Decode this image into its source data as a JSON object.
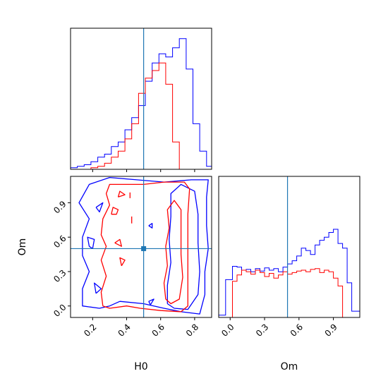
{
  "chart_data": {
    "type": "corner",
    "parameters": [
      "H0",
      "Om"
    ],
    "axis_labels": {
      "x_h0": "H0",
      "x_om": "Om",
      "y_om": "Om"
    },
    "ranges": {
      "H0": [
        0.07,
        0.9
      ],
      "Om": [
        -0.1,
        1.13
      ]
    },
    "truths": {
      "H0": 0.5,
      "Om": 0.5
    },
    "colors": {
      "sample_1": "#0000ff",
      "sample_2": "#ff0000",
      "truth": "#1f77b4"
    },
    "ticks": {
      "H0": {
        "values": [
          0.2,
          0.4,
          0.6,
          0.8
        ],
        "labels": [
          "0.2",
          "0.4",
          "0.6",
          "0.8"
        ]
      },
      "Om": {
        "values": [
          0.0,
          0.3,
          0.6,
          0.9
        ],
        "labels": [
          "0.0",
          "0.3",
          "0.6",
          "0.9"
        ]
      }
    },
    "hist_H0": {
      "x": [
        0.07,
        0.11,
        0.15,
        0.19,
        0.23,
        0.27,
        0.31,
        0.35,
        0.39,
        0.43,
        0.47,
        0.51,
        0.55,
        0.59,
        0.63,
        0.67,
        0.71,
        0.75,
        0.79,
        0.83,
        0.87,
        0.9
      ],
      "blue": [
        1,
        2,
        3,
        5,
        8,
        10,
        15,
        18,
        26,
        34,
        42,
        58,
        70,
        76,
        74,
        80,
        86,
        66,
        30,
        12,
        2
      ],
      "red": [
        0,
        0,
        0,
        1,
        2,
        4,
        8,
        12,
        20,
        30,
        50,
        60,
        65,
        70,
        56,
        18,
        0,
        0,
        0,
        0,
        0
      ]
    },
    "hist_Om": {
      "x": [
        -0.1,
        -0.04,
        0.02,
        0.06,
        0.1,
        0.14,
        0.18,
        0.22,
        0.26,
        0.3,
        0.34,
        0.38,
        0.42,
        0.46,
        0.5,
        0.54,
        0.58,
        0.62,
        0.66,
        0.7,
        0.74,
        0.78,
        0.82,
        0.86,
        0.9,
        0.94,
        0.98,
        1.02,
        1.06,
        1.13
      ],
      "blue": [
        3,
        48,
        65,
        64,
        60,
        61,
        58,
        62,
        59,
        63,
        60,
        62,
        58,
        64,
        68,
        72,
        78,
        88,
        85,
        80,
        92,
        98,
        102,
        108,
        112,
        94,
        88,
        44,
        8
      ],
      "red": [
        0,
        0,
        46,
        54,
        60,
        58,
        55,
        60,
        57,
        52,
        56,
        50,
        54,
        58,
        55,
        57,
        59,
        60,
        58,
        61,
        62,
        57,
        60,
        58,
        50,
        40,
        0,
        0,
        0
      ]
    },
    "contours": {
      "blue": [
        [
          [
            0.36,
            0.04
          ],
          [
            0.3,
            0.0
          ],
          [
            0.24,
            -0.02
          ],
          [
            0.14,
            0.0
          ],
          [
            0.14,
            0.15
          ],
          [
            0.18,
            0.3
          ],
          [
            0.14,
            0.44
          ],
          [
            0.14,
            0.6
          ],
          [
            0.18,
            0.76
          ],
          [
            0.12,
            0.9
          ],
          [
            0.18,
            1.06
          ],
          [
            0.3,
            1.12
          ],
          [
            0.46,
            1.1
          ],
          [
            0.62,
            1.08
          ],
          [
            0.78,
            1.1
          ],
          [
            0.88,
            1.1
          ],
          [
            0.87,
            0.95
          ],
          [
            0.87,
            0.7
          ],
          [
            0.88,
            0.5
          ],
          [
            0.86,
            0.3
          ],
          [
            0.86,
            0.1
          ],
          [
            0.83,
            -0.07
          ],
          [
            0.72,
            -0.05
          ],
          [
            0.62,
            -0.02
          ],
          [
            0.5,
            0.02
          ],
          [
            0.36,
            0.04
          ]
        ],
        [
          [
            0.64,
            0.02
          ],
          [
            0.64,
            0.18
          ],
          [
            0.66,
            0.38
          ],
          [
            0.65,
            0.58
          ],
          [
            0.66,
            0.78
          ],
          [
            0.66,
            0.98
          ],
          [
            0.72,
            1.06
          ],
          [
            0.8,
            1.0
          ],
          [
            0.82,
            0.8
          ],
          [
            0.82,
            0.55
          ],
          [
            0.83,
            0.3
          ],
          [
            0.82,
            0.1
          ],
          [
            0.76,
            -0.03
          ],
          [
            0.68,
            -0.02
          ],
          [
            0.64,
            0.02
          ]
        ],
        [
          [
            0.18,
            0.52
          ],
          [
            0.17,
            0.6
          ],
          [
            0.21,
            0.58
          ],
          [
            0.2,
            0.5
          ],
          [
            0.18,
            0.52
          ]
        ],
        [
          [
            0.22,
            0.11
          ],
          [
            0.21,
            0.2
          ],
          [
            0.25,
            0.15
          ],
          [
            0.22,
            0.11
          ]
        ],
        [
          [
            0.22,
            0.86
          ],
          [
            0.26,
            0.9
          ],
          [
            0.24,
            0.82
          ],
          [
            0.22,
            0.86
          ]
        ],
        [
          [
            0.53,
            0.04
          ],
          [
            0.56,
            0.06
          ],
          [
            0.54,
            0.01
          ],
          [
            0.53,
            0.04
          ]
        ],
        [
          [
            0.53,
            0.7
          ],
          [
            0.55,
            0.72
          ],
          [
            0.55,
            0.68
          ],
          [
            0.53,
            0.7
          ]
        ]
      ],
      "red": [
        [
          [
            0.26,
            0.0
          ],
          [
            0.3,
            -0.02
          ],
          [
            0.4,
            0.0
          ],
          [
            0.48,
            -0.02
          ],
          [
            0.6,
            -0.04
          ],
          [
            0.72,
            -0.05
          ],
          [
            0.76,
            0.0
          ],
          [
            0.76,
            0.2
          ],
          [
            0.76,
            0.4
          ],
          [
            0.76,
            0.6
          ],
          [
            0.76,
            0.8
          ],
          [
            0.77,
            1.02
          ],
          [
            0.74,
            1.08
          ],
          [
            0.62,
            1.08
          ],
          [
            0.5,
            1.06
          ],
          [
            0.4,
            1.06
          ],
          [
            0.3,
            1.06
          ],
          [
            0.28,
            0.98
          ],
          [
            0.3,
            0.88
          ],
          [
            0.26,
            0.76
          ],
          [
            0.25,
            0.62
          ],
          [
            0.28,
            0.52
          ],
          [
            0.25,
            0.4
          ],
          [
            0.28,
            0.26
          ],
          [
            0.25,
            0.12
          ],
          [
            0.26,
            0.0
          ]
        ],
        [
          [
            0.63,
            0.06
          ],
          [
            0.62,
            0.2
          ],
          [
            0.64,
            0.35
          ],
          [
            0.63,
            0.52
          ],
          [
            0.65,
            0.68
          ],
          [
            0.64,
            0.84
          ],
          [
            0.68,
            0.92
          ],
          [
            0.72,
            0.84
          ],
          [
            0.72,
            0.65
          ],
          [
            0.72,
            0.45
          ],
          [
            0.73,
            0.25
          ],
          [
            0.71,
            0.06
          ],
          [
            0.66,
            0.02
          ],
          [
            0.63,
            0.06
          ]
        ],
        [
          [
            0.31,
            0.8
          ],
          [
            0.32,
            0.86
          ],
          [
            0.35,
            0.84
          ],
          [
            0.34,
            0.8
          ],
          [
            0.31,
            0.8
          ]
        ],
        [
          [
            0.33,
            0.55
          ],
          [
            0.36,
            0.58
          ],
          [
            0.37,
            0.52
          ],
          [
            0.33,
            0.55
          ]
        ],
        [
          [
            0.37,
            0.35
          ],
          [
            0.36,
            0.42
          ],
          [
            0.39,
            0.4
          ],
          [
            0.37,
            0.35
          ]
        ],
        [
          [
            0.35,
            0.95
          ],
          [
            0.36,
            1.0
          ],
          [
            0.39,
            0.97
          ],
          [
            0.35,
            0.95
          ]
        ],
        [
          [
            0.43,
            0.72
          ],
          [
            0.43,
            0.78
          ]
        ],
        [
          [
            0.42,
            0.94
          ],
          [
            0.42,
            0.99
          ]
        ]
      ]
    }
  }
}
